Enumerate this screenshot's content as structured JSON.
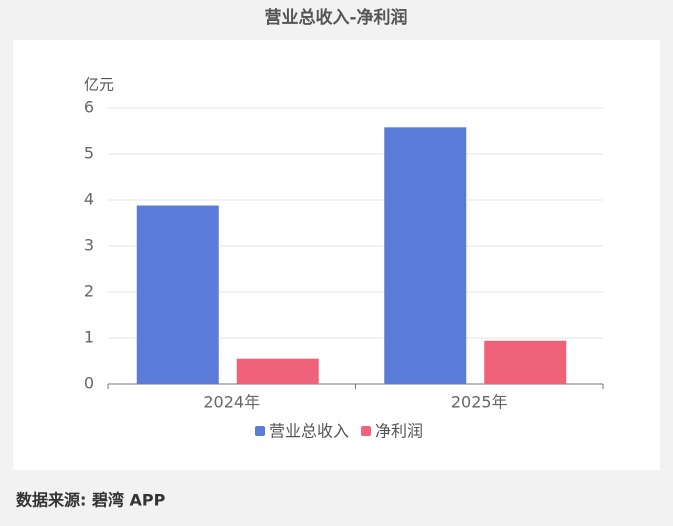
{
  "chart_data": {
    "type": "bar",
    "title": "营业总收入-净利润",
    "ylabel": "亿元",
    "categories": [
      "2024年",
      "2025年"
    ],
    "series": [
      {
        "name": "营业总收入",
        "color": "#5b7bd9",
        "values": [
          3.88,
          5.58
        ]
      },
      {
        "name": "净利润",
        "color": "#f0627a",
        "values": [
          0.55,
          0.94
        ]
      }
    ],
    "ylim": [
      0,
      6
    ],
    "yticks": [
      0,
      1,
      2,
      3,
      4,
      5,
      6
    ],
    "grid": true,
    "legend": "bottom",
    "source": "数据来源: 碧湾 APP"
  }
}
